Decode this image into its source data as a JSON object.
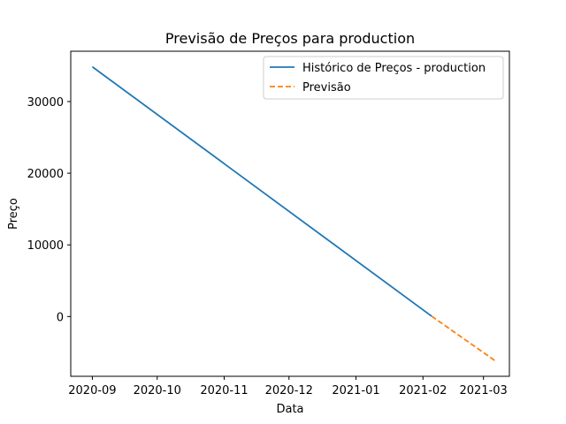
{
  "chart_data": {
    "type": "line",
    "title": "Previsão de Preços para production",
    "xlabel": "Data",
    "ylabel": "Preço",
    "x_ticks": [
      "2020-09",
      "2020-10",
      "2020-11",
      "2020-12",
      "2021-01",
      "2021-02",
      "2021-03"
    ],
    "y_ticks": [
      0,
      10000,
      20000,
      30000
    ],
    "xlim": [
      "2020-08-22",
      "2021-03-13"
    ],
    "ylim": [
      -8340,
      37020
    ],
    "grid": false,
    "legend_position": "top-right",
    "series": [
      {
        "name": "Histórico de Preços - production",
        "style": "solid",
        "color": "#1f77b4",
        "x": [
          "2020-09-01",
          "2021-02-05"
        ],
        "y": [
          34850,
          50
        ]
      },
      {
        "name": "Previsão",
        "style": "dashed",
        "color": "#ff7f0e",
        "x": [
          "2021-02-05",
          "2021-03-07"
        ],
        "y": [
          50,
          -6300
        ]
      }
    ]
  }
}
